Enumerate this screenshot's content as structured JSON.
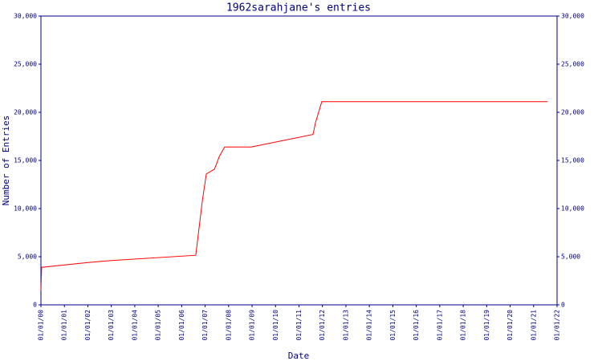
{
  "chart_data": {
    "type": "line",
    "title": "1962sarahjane's entries",
    "x_label": "Date",
    "y_label": "Number of Entries",
    "x": [
      0,
      0.03,
      2,
      3,
      6.6,
      6.88,
      7.05,
      7.4,
      7.6,
      7.83,
      8.96,
      11.6,
      11.7,
      11.97,
      21.6
    ],
    "series": [
      {
        "name": "entries",
        "color": "#ff0000",
        "values": [
          1500,
          3900,
          4400,
          4600,
          5150,
          10800,
          13600,
          14100,
          15400,
          16400,
          16400,
          17700,
          18900,
          21100,
          21100
        ]
      }
    ],
    "xlim": [
      0,
      22
    ],
    "xticks": [
      {
        "value": 0,
        "label": "01/01/00"
      },
      {
        "value": 1,
        "label": "01/01/01"
      },
      {
        "value": 2,
        "label": "01/01/02"
      },
      {
        "value": 3,
        "label": "01/01/03"
      },
      {
        "value": 4,
        "label": "01/01/04"
      },
      {
        "value": 5,
        "label": "01/01/05"
      },
      {
        "value": 6,
        "label": "01/01/06"
      },
      {
        "value": 7,
        "label": "01/01/07"
      },
      {
        "value": 8,
        "label": "01/01/08"
      },
      {
        "value": 9,
        "label": "01/01/09"
      },
      {
        "value": 10,
        "label": "01/01/10"
      },
      {
        "value": 11,
        "label": "01/01/11"
      },
      {
        "value": 12,
        "label": "01/01/12"
      },
      {
        "value": 13,
        "label": "01/01/13"
      },
      {
        "value": 14,
        "label": "01/01/14"
      },
      {
        "value": 15,
        "label": "01/01/15"
      },
      {
        "value": 16,
        "label": "01/01/16"
      },
      {
        "value": 17,
        "label": "01/01/17"
      },
      {
        "value": 18,
        "label": "01/01/18"
      },
      {
        "value": 19,
        "label": "01/01/19"
      },
      {
        "value": 20,
        "label": "01/01/20"
      },
      {
        "value": 21,
        "label": "01/01/21"
      },
      {
        "value": 22,
        "label": "01/01/22"
      }
    ],
    "ylim": [
      0,
      30000
    ],
    "yticks": [
      0,
      {
        "value": 5000,
        "label": "5,000"
      },
      {
        "value": 10000,
        "label": "10,000"
      },
      {
        "value": 15000,
        "label": "15,000"
      },
      {
        "value": 20000,
        "label": "20,000"
      },
      {
        "value": 25000,
        "label": "25,000"
      },
      {
        "value": 30000,
        "label": "30,000"
      }
    ],
    "y2lim": [
      0,
      30000
    ],
    "y2ticks": [
      0,
      {
        "value": 5000,
        "label": "5,000"
      },
      {
        "value": 10000,
        "label": "10,000"
      },
      {
        "value": 15000,
        "label": "15,000"
      },
      {
        "value": 20000,
        "label": "20,000"
      },
      {
        "value": 25000,
        "label": "25,000"
      },
      {
        "value": 30000,
        "label": "30,000"
      }
    ],
    "axis_color": "#000080"
  }
}
